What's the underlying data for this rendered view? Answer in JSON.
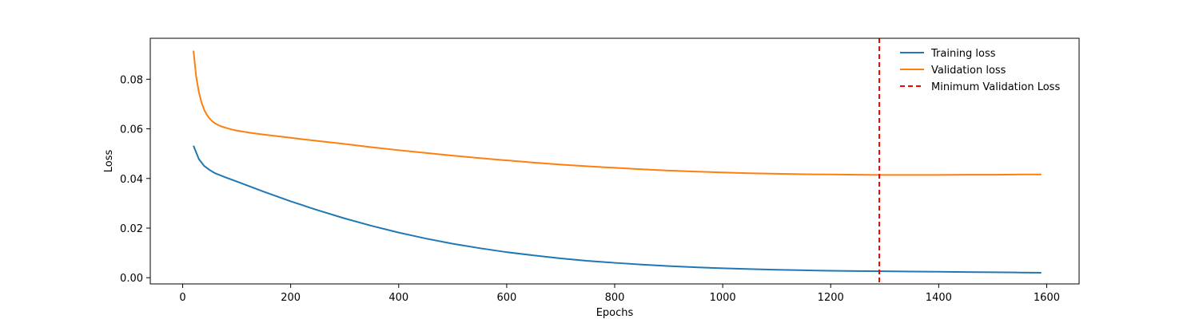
{
  "chart_data": {
    "type": "line",
    "title": "",
    "xlabel": "Epochs",
    "ylabel": "Loss",
    "xlim": [
      -60,
      1660
    ],
    "ylim": [
      -0.0025,
      0.0965
    ],
    "xticks": [
      0,
      200,
      400,
      600,
      800,
      1000,
      1200,
      1400,
      1600
    ],
    "xtick_labels": [
      "0",
      "200",
      "400",
      "600",
      "800",
      "1000",
      "1200",
      "1400",
      "1600"
    ],
    "yticks": [
      0.0,
      0.02,
      0.04,
      0.06,
      0.08
    ],
    "ytick_labels": [
      "0.00",
      "0.02",
      "0.04",
      "0.06",
      "0.08"
    ],
    "grid": false,
    "legend_position": "top-right",
    "series": [
      {
        "name": "Training loss",
        "color": "#1f77b4",
        "style": "solid",
        "x": [
          20,
          30,
          40,
          50,
          60,
          80,
          100,
          150,
          200,
          250,
          300,
          350,
          400,
          450,
          500,
          550,
          600,
          650,
          700,
          750,
          800,
          850,
          900,
          950,
          1000,
          1050,
          1100,
          1150,
          1200,
          1250,
          1300,
          1350,
          1400,
          1450,
          1500,
          1550,
          1590
        ],
        "y": [
          0.0532,
          0.0478,
          0.045,
          0.0434,
          0.0421,
          0.0404,
          0.0388,
          0.0347,
          0.0308,
          0.0272,
          0.0239,
          0.0209,
          0.0182,
          0.0158,
          0.0137,
          0.0119,
          0.0103,
          0.009,
          0.0078,
          0.0068,
          0.006,
          0.0053,
          0.0047,
          0.0042,
          0.0038,
          0.0035,
          0.0032,
          0.003,
          0.0028,
          0.0027,
          0.0026,
          0.0025,
          0.0024,
          0.0023,
          0.0022,
          0.0021,
          0.002
        ]
      },
      {
        "name": "Validation loss",
        "color": "#ff7f0e",
        "style": "solid",
        "x": [
          20,
          25,
          30,
          35,
          40,
          45,
          50,
          55,
          60,
          70,
          80,
          90,
          100,
          125,
          150,
          200,
          250,
          300,
          350,
          400,
          450,
          500,
          550,
          600,
          650,
          700,
          750,
          800,
          850,
          900,
          950,
          1000,
          1050,
          1100,
          1150,
          1200,
          1250,
          1290,
          1350,
          1400,
          1450,
          1500,
          1550,
          1590
        ],
        "y": [
          0.0915,
          0.081,
          0.0748,
          0.0705,
          0.0676,
          0.0656,
          0.0641,
          0.063,
          0.0622,
          0.0611,
          0.0604,
          0.0598,
          0.0593,
          0.0584,
          0.0577,
          0.0564,
          0.0551,
          0.0539,
          0.0526,
          0.0514,
          0.0503,
          0.0492,
          0.0482,
          0.0473,
          0.0464,
          0.0456,
          0.0449,
          0.0443,
          0.0437,
          0.0432,
          0.0428,
          0.0424,
          0.0421,
          0.0419,
          0.0417,
          0.0416,
          0.0415,
          0.0414,
          0.0414,
          0.0414,
          0.0415,
          0.0415,
          0.0416,
          0.0416
        ]
      }
    ],
    "vlines": [
      {
        "name": "Minimum Validation Loss",
        "x": 1290,
        "color": "#ff0000",
        "style": "dashed"
      }
    ]
  }
}
